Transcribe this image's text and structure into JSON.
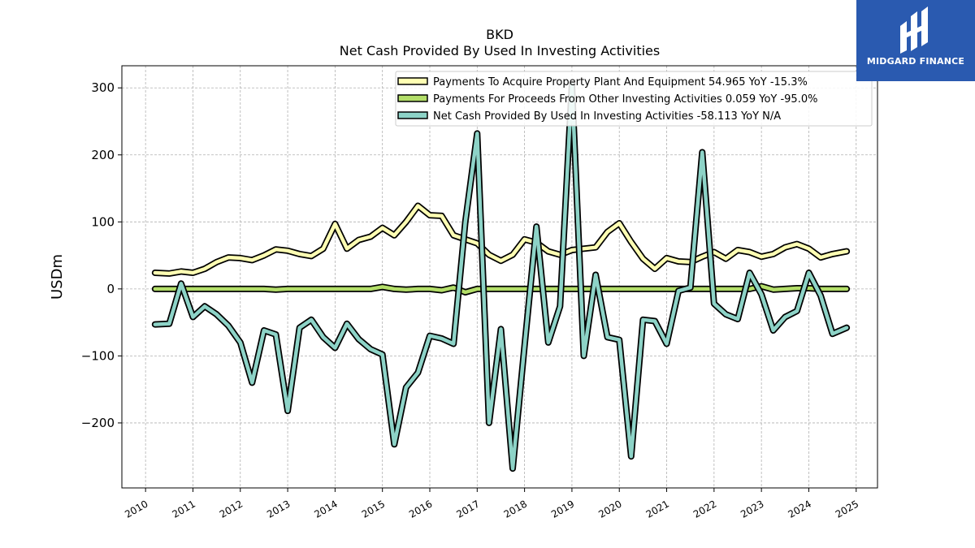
{
  "chart_data": {
    "type": "line",
    "title": "BKD",
    "subtitle": "Net Cash Provided By Used In Investing Activities",
    "ylabel": "USDm",
    "xlabel": "",
    "xlim": [
      2009.5,
      2025.45
    ],
    "ylim": [
      -297,
      333
    ],
    "yticks": [
      -200,
      -100,
      0,
      100,
      200,
      300
    ],
    "ytick_labels": [
      "−200",
      "−100",
      "0",
      "100",
      "200",
      "300"
    ],
    "xticks": [
      2010,
      2011,
      2012,
      2013,
      2014,
      2015,
      2016,
      2017,
      2018,
      2019,
      2020,
      2021,
      2022,
      2023,
      2024,
      2025
    ],
    "xtick_labels": [
      "2010",
      "2011",
      "2012",
      "2013",
      "2014",
      "2015",
      "2016",
      "2017",
      "2018",
      "2019",
      "2020",
      "2021",
      "2022",
      "2023",
      "2024",
      "2025"
    ],
    "grid": true,
    "legend_position": "top-right",
    "series": [
      {
        "name": "Payments To Acquire Property Plant And Equipment",
        "legend_label": "Payments To Acquire Property Plant And Equipment  54.965 YoY -15.3%",
        "color": "#ffffb3",
        "points": [
          [
            2010.2,
            24
          ],
          [
            2010.5,
            23
          ],
          [
            2010.75,
            26
          ],
          [
            2011.0,
            24
          ],
          [
            2011.25,
            30
          ],
          [
            2011.5,
            40
          ],
          [
            2011.75,
            47
          ],
          [
            2012.0,
            46
          ],
          [
            2012.25,
            43
          ],
          [
            2012.5,
            50
          ],
          [
            2012.75,
            59
          ],
          [
            2013.0,
            57
          ],
          [
            2013.25,
            52
          ],
          [
            2013.5,
            49
          ],
          [
            2013.75,
            60
          ],
          [
            2014.0,
            97
          ],
          [
            2014.25,
            60
          ],
          [
            2014.5,
            73
          ],
          [
            2014.75,
            78
          ],
          [
            2015.0,
            91
          ],
          [
            2015.25,
            80
          ],
          [
            2015.5,
            100
          ],
          [
            2015.75,
            124
          ],
          [
            2016.0,
            110
          ],
          [
            2016.25,
            109
          ],
          [
            2016.5,
            80
          ],
          [
            2016.75,
            74
          ],
          [
            2017.0,
            68
          ],
          [
            2017.25,
            51
          ],
          [
            2017.5,
            42
          ],
          [
            2017.75,
            51
          ],
          [
            2018.0,
            74
          ],
          [
            2018.25,
            69
          ],
          [
            2018.5,
            56
          ],
          [
            2018.75,
            51
          ],
          [
            2019.0,
            58
          ],
          [
            2019.25,
            60
          ],
          [
            2019.5,
            62
          ],
          [
            2019.75,
            85
          ],
          [
            2020.0,
            98
          ],
          [
            2020.25,
            70
          ],
          [
            2020.5,
            45
          ],
          [
            2020.75,
            30
          ],
          [
            2021.0,
            46
          ],
          [
            2021.25,
            41
          ],
          [
            2021.5,
            40
          ],
          [
            2021.75,
            48
          ],
          [
            2022.0,
            55
          ],
          [
            2022.25,
            45
          ],
          [
            2022.5,
            58
          ],
          [
            2022.75,
            55
          ],
          [
            2023.0,
            48
          ],
          [
            2023.25,
            52
          ],
          [
            2023.5,
            62
          ],
          [
            2023.75,
            67
          ],
          [
            2024.0,
            60
          ],
          [
            2024.25,
            47
          ],
          [
            2024.5,
            52
          ],
          [
            2024.8,
            56
          ]
        ]
      },
      {
        "name": "Payments For Proceeds From Other Investing Activities",
        "legend_label": "Payments For Proceeds From Other Investing Activities  0.059 YoY -95.0%",
        "color": "#b3de69",
        "points": [
          [
            2010.2,
            0
          ],
          [
            2010.5,
            0
          ],
          [
            2010.75,
            0
          ],
          [
            2011.0,
            0
          ],
          [
            2011.25,
            0
          ],
          [
            2011.5,
            0
          ],
          [
            2011.75,
            0
          ],
          [
            2012.0,
            0
          ],
          [
            2012.25,
            0
          ],
          [
            2012.5,
            0
          ],
          [
            2012.75,
            -1
          ],
          [
            2013.0,
            0
          ],
          [
            2013.25,
            0
          ],
          [
            2013.5,
            0
          ],
          [
            2013.75,
            0
          ],
          [
            2014.0,
            0
          ],
          [
            2014.25,
            0
          ],
          [
            2014.5,
            0
          ],
          [
            2014.75,
            0
          ],
          [
            2015.0,
            3
          ],
          [
            2015.25,
            0
          ],
          [
            2015.5,
            -1
          ],
          [
            2015.75,
            0
          ],
          [
            2016.0,
            0
          ],
          [
            2016.25,
            -2
          ],
          [
            2016.5,
            2
          ],
          [
            2016.75,
            -5
          ],
          [
            2017.0,
            0
          ],
          [
            2017.25,
            0
          ],
          [
            2017.5,
            0
          ],
          [
            2017.75,
            0
          ],
          [
            2018.0,
            0
          ],
          [
            2018.25,
            0
          ],
          [
            2018.5,
            0
          ],
          [
            2018.75,
            0
          ],
          [
            2019.0,
            0
          ],
          [
            2019.25,
            0
          ],
          [
            2019.5,
            0
          ],
          [
            2019.75,
            0
          ],
          [
            2020.0,
            0
          ],
          [
            2020.25,
            0
          ],
          [
            2020.5,
            0
          ],
          [
            2020.75,
            0
          ],
          [
            2021.0,
            0
          ],
          [
            2021.25,
            0
          ],
          [
            2021.5,
            0
          ],
          [
            2021.75,
            0
          ],
          [
            2022.0,
            0
          ],
          [
            2022.25,
            0
          ],
          [
            2022.5,
            0
          ],
          [
            2022.75,
            0
          ],
          [
            2023.0,
            4
          ],
          [
            2023.25,
            -1
          ],
          [
            2023.5,
            0
          ],
          [
            2023.75,
            1
          ],
          [
            2024.0,
            1
          ],
          [
            2024.25,
            0
          ],
          [
            2024.5,
            0
          ],
          [
            2024.8,
            0
          ]
        ]
      },
      {
        "name": "Net Cash Provided By Used In Investing Activities",
        "legend_label": "Net Cash Provided By Used In Investing Activities  -58.113 YoY N/A",
        "color": "#8dd3c7",
        "points": [
          [
            2010.2,
            -53
          ],
          [
            2010.5,
            -52
          ],
          [
            2010.75,
            8
          ],
          [
            2011.0,
            -42
          ],
          [
            2011.25,
            -26
          ],
          [
            2011.5,
            -38
          ],
          [
            2011.75,
            -55
          ],
          [
            2012.0,
            -80
          ],
          [
            2012.25,
            -140
          ],
          [
            2012.5,
            -62
          ],
          [
            2012.75,
            -68
          ],
          [
            2013.0,
            -182
          ],
          [
            2013.25,
            -58
          ],
          [
            2013.5,
            -46
          ],
          [
            2013.75,
            -72
          ],
          [
            2014.0,
            -88
          ],
          [
            2014.25,
            -52
          ],
          [
            2014.5,
            -75
          ],
          [
            2014.75,
            -90
          ],
          [
            2015.0,
            -98
          ],
          [
            2015.25,
            -232
          ],
          [
            2015.5,
            -147
          ],
          [
            2015.75,
            -125
          ],
          [
            2016.0,
            -70
          ],
          [
            2016.25,
            -74
          ],
          [
            2016.5,
            -82
          ],
          [
            2016.75,
            100
          ],
          [
            2017.0,
            232
          ],
          [
            2017.25,
            -200
          ],
          [
            2017.5,
            -60
          ],
          [
            2017.75,
            -268
          ],
          [
            2018.0,
            -85
          ],
          [
            2018.25,
            93
          ],
          [
            2018.5,
            -80
          ],
          [
            2018.75,
            -26
          ],
          [
            2019.0,
            305
          ],
          [
            2019.25,
            -100
          ],
          [
            2019.5,
            21
          ],
          [
            2019.75,
            -72
          ],
          [
            2020.0,
            -76
          ],
          [
            2020.25,
            -250
          ],
          [
            2020.5,
            -46
          ],
          [
            2020.75,
            -48
          ],
          [
            2021.0,
            -82
          ],
          [
            2021.25,
            -3
          ],
          [
            2021.5,
            2
          ],
          [
            2021.75,
            204
          ],
          [
            2022.0,
            -22
          ],
          [
            2022.25,
            -38
          ],
          [
            2022.5,
            -45
          ],
          [
            2022.75,
            24
          ],
          [
            2023.0,
            -8
          ],
          [
            2023.25,
            -62
          ],
          [
            2023.5,
            -42
          ],
          [
            2023.75,
            -33
          ],
          [
            2024.0,
            24
          ],
          [
            2024.25,
            -10
          ],
          [
            2024.5,
            -67
          ],
          [
            2024.8,
            -58
          ]
        ]
      }
    ]
  },
  "logo": {
    "text": "MIDGARD FINANCE",
    "color": "#2a5ab0"
  }
}
